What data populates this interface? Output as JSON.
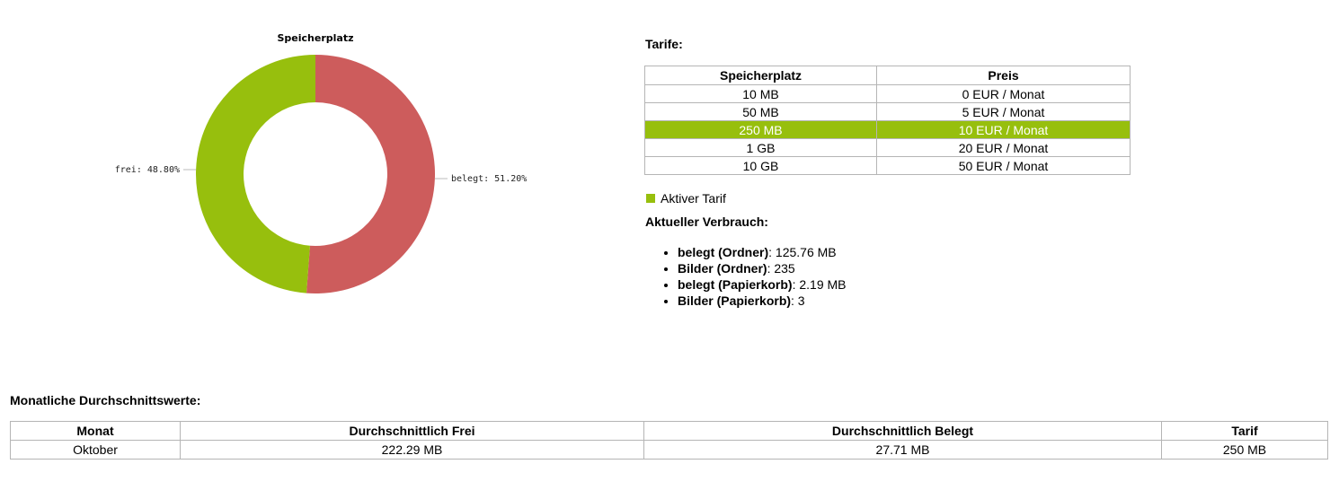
{
  "chart_data": {
    "type": "pie",
    "title": "Speicherplatz",
    "slices": [
      {
        "name": "belegt",
        "value": 51.2,
        "label": "belegt: 51.20%",
        "color": "#cd5c5c"
      },
      {
        "name": "frei",
        "value": 48.8,
        "label": "frei: 48.80%",
        "color": "#97bf0d"
      }
    ]
  },
  "tarife": {
    "heading": "Tarife:",
    "columns": [
      "Speicherplatz",
      "Preis"
    ],
    "rows": [
      {
        "space": "10 MB",
        "price": "0 EUR / Monat",
        "active": false
      },
      {
        "space": "50 MB",
        "price": "5 EUR / Monat",
        "active": false
      },
      {
        "space": "250 MB",
        "price": "10 EUR / Monat",
        "active": true
      },
      {
        "space": "1 GB",
        "price": "20 EUR / Monat",
        "active": false
      },
      {
        "space": "10 GB",
        "price": "50 EUR / Monat",
        "active": false
      }
    ],
    "active_color": "#97bf0d"
  },
  "legend": {
    "label": "Aktiver Tarif",
    "color": "#97bf0d"
  },
  "usage": {
    "heading": "Aktueller Verbrauch:",
    "items": [
      {
        "label": "belegt (Ordner)",
        "value": ": 125.76 MB"
      },
      {
        "label": "Bilder (Ordner)",
        "value": ": 235"
      },
      {
        "label": "belegt (Papierkorb)",
        "value": ": 2.19 MB"
      },
      {
        "label": "Bilder (Papierkorb)",
        "value": ": 3"
      }
    ]
  },
  "monthly": {
    "heading": "Monatliche Durchschnittswerte:",
    "columns": [
      "Monat",
      "Durchschnittlich Frei",
      "Durchschnittlich Belegt",
      "Tarif"
    ],
    "rows": [
      [
        "Oktober",
        "222.29 MB",
        "27.71 MB",
        "250 MB"
      ]
    ]
  }
}
